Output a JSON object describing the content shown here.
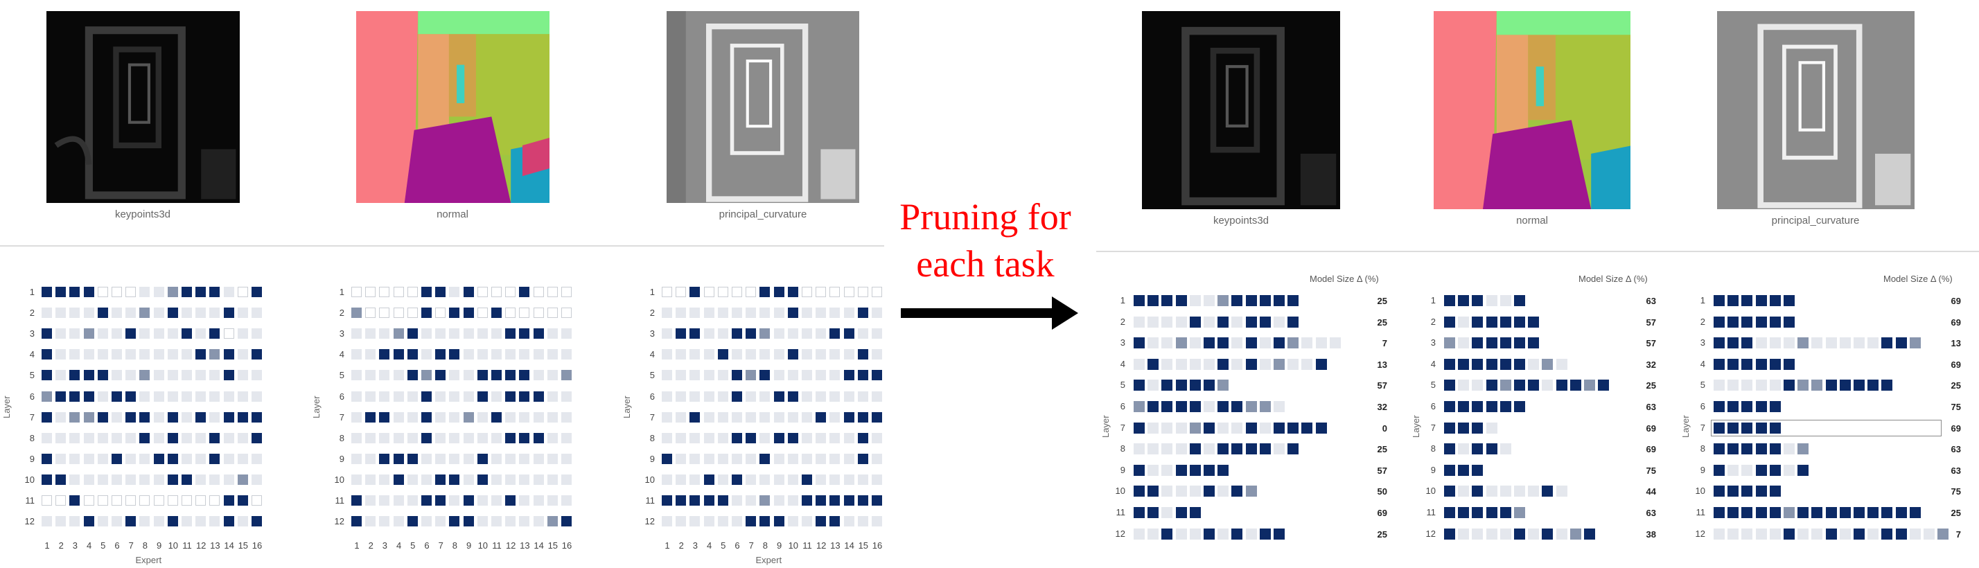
{
  "left": {
    "thumbnails": [
      {
        "caption": "keypoints3d"
      },
      {
        "caption": "normal"
      },
      {
        "caption": "principal_curvature"
      }
    ],
    "x_axis_title": "Expert",
    "y_axis_title": "Layer",
    "row_labels": [
      "1",
      "2",
      "3",
      "4",
      "5",
      "6",
      "7",
      "8",
      "9",
      "10",
      "11",
      "12"
    ],
    "col_labels": [
      "1",
      "2",
      "3",
      "4",
      "5",
      "6",
      "7",
      "8",
      "9",
      "10",
      "11",
      "12",
      "13",
      "14",
      "15",
      "16"
    ]
  },
  "callout": {
    "line1": "Pruning for",
    "line2": "each task",
    "color": "#ff0000"
  },
  "right": {
    "thumbnails": [
      {
        "caption": "keypoints3d"
      },
      {
        "caption": "normal"
      },
      {
        "caption": "principal_curvature"
      }
    ],
    "model_size_header": "Model Size Δ (%)",
    "y_axis_title": "Layer",
    "row_labels": [
      "1",
      "2",
      "3",
      "4",
      "5",
      "6",
      "7",
      "8",
      "9",
      "10",
      "11",
      "12"
    ]
  },
  "chart_data": [
    {
      "type": "heatmap",
      "panel": "left",
      "task": "keypoints3d",
      "xlabel": "Expert",
      "ylabel": "Layer",
      "legend_levels": "0=unused(white),1=light,2=medium,3=dark(most used)",
      "grid": [
        [
          3,
          3,
          3,
          3,
          0,
          0,
          0,
          1,
          1,
          2,
          3,
          3,
          3,
          1,
          0,
          3
        ],
        [
          1,
          1,
          1,
          1,
          3,
          1,
          1,
          2,
          1,
          3,
          1,
          1,
          1,
          3,
          1,
          1
        ],
        [
          3,
          1,
          1,
          2,
          1,
          1,
          3,
          1,
          1,
          1,
          3,
          1,
          3,
          0,
          1,
          1
        ],
        [
          3,
          1,
          1,
          1,
          1,
          1,
          1,
          1,
          1,
          1,
          1,
          3,
          2,
          3,
          1,
          3
        ],
        [
          3,
          1,
          3,
          3,
          3,
          1,
          1,
          2,
          1,
          1,
          1,
          1,
          1,
          3,
          1,
          1
        ],
        [
          2,
          3,
          3,
          3,
          1,
          3,
          3,
          1,
          1,
          1,
          1,
          1,
          1,
          1,
          1,
          1
        ],
        [
          3,
          1,
          2,
          2,
          3,
          1,
          3,
          3,
          1,
          3,
          1,
          3,
          1,
          3,
          3,
          3
        ],
        [
          1,
          1,
          1,
          1,
          1,
          1,
          1,
          3,
          1,
          3,
          1,
          1,
          3,
          1,
          1,
          3
        ],
        [
          3,
          1,
          1,
          1,
          1,
          3,
          1,
          1,
          3,
          3,
          1,
          1,
          3,
          1,
          1,
          1
        ],
        [
          3,
          3,
          1,
          1,
          1,
          1,
          1,
          1,
          1,
          3,
          3,
          1,
          1,
          1,
          2,
          1
        ],
        [
          0,
          0,
          3,
          0,
          0,
          0,
          0,
          0,
          0,
          0,
          0,
          0,
          0,
          3,
          3,
          0
        ],
        [
          1,
          1,
          1,
          3,
          1,
          1,
          3,
          1,
          1,
          3,
          1,
          1,
          1,
          3,
          1,
          3
        ]
      ]
    },
    {
      "type": "heatmap",
      "panel": "left",
      "task": "normal",
      "xlabel": "",
      "ylabel": "Layer",
      "grid": [
        [
          0,
          0,
          0,
          0,
          0,
          3,
          3,
          1,
          3,
          0,
          0,
          0,
          3,
          0,
          0,
          0
        ],
        [
          2,
          0,
          0,
          0,
          0,
          3,
          0,
          3,
          3,
          0,
          3,
          0,
          0,
          0,
          0,
          0
        ],
        [
          1,
          1,
          1,
          2,
          3,
          1,
          1,
          1,
          1,
          1,
          1,
          3,
          3,
          3,
          1,
          1
        ],
        [
          1,
          1,
          3,
          3,
          3,
          1,
          3,
          3,
          1,
          1,
          1,
          1,
          1,
          1,
          1,
          1
        ],
        [
          1,
          1,
          1,
          1,
          3,
          2,
          3,
          1,
          1,
          3,
          3,
          3,
          3,
          1,
          1,
          2
        ],
        [
          1,
          1,
          1,
          1,
          1,
          3,
          1,
          1,
          1,
          3,
          1,
          3,
          3,
          3,
          1,
          1
        ],
        [
          1,
          3,
          3,
          1,
          1,
          3,
          1,
          1,
          2,
          1,
          3,
          1,
          1,
          1,
          1,
          1
        ],
        [
          1,
          1,
          1,
          1,
          1,
          3,
          1,
          1,
          1,
          1,
          1,
          3,
          3,
          3,
          1,
          1
        ],
        [
          1,
          1,
          3,
          3,
          3,
          1,
          1,
          1,
          1,
          3,
          1,
          1,
          1,
          1,
          1,
          1
        ],
        [
          1,
          1,
          1,
          3,
          1,
          1,
          3,
          3,
          1,
          3,
          1,
          1,
          1,
          1,
          1,
          1
        ],
        [
          3,
          1,
          1,
          1,
          1,
          3,
          3,
          1,
          3,
          1,
          1,
          3,
          1,
          1,
          1,
          1
        ],
        [
          3,
          1,
          1,
          1,
          3,
          1,
          1,
          3,
          3,
          1,
          1,
          1,
          1,
          1,
          2,
          3
        ]
      ]
    },
    {
      "type": "heatmap",
      "panel": "left",
      "task": "principal_curvature",
      "xlabel": "Expert",
      "ylabel": "Layer",
      "grid": [
        [
          0,
          0,
          3,
          0,
          0,
          0,
          0,
          3,
          3,
          3,
          0,
          0,
          0,
          0,
          0,
          0
        ],
        [
          1,
          1,
          1,
          1,
          1,
          1,
          1,
          1,
          1,
          3,
          1,
          1,
          1,
          1,
          3,
          1
        ],
        [
          1,
          3,
          3,
          1,
          1,
          3,
          3,
          2,
          1,
          1,
          1,
          1,
          3,
          3,
          1,
          1
        ],
        [
          1,
          1,
          1,
          1,
          3,
          1,
          1,
          1,
          1,
          3,
          1,
          1,
          1,
          1,
          3,
          1
        ],
        [
          1,
          1,
          1,
          1,
          1,
          3,
          2,
          3,
          1,
          1,
          1,
          1,
          1,
          3,
          3,
          3
        ],
        [
          1,
          1,
          1,
          1,
          1,
          3,
          1,
          1,
          3,
          3,
          1,
          1,
          1,
          1,
          1,
          1
        ],
        [
          1,
          1,
          3,
          1,
          1,
          1,
          1,
          1,
          1,
          1,
          1,
          3,
          1,
          3,
          3,
          3
        ],
        [
          1,
          1,
          1,
          1,
          1,
          3,
          3,
          1,
          3,
          3,
          1,
          1,
          1,
          1,
          3,
          1
        ],
        [
          3,
          1,
          1,
          1,
          1,
          1,
          1,
          3,
          1,
          1,
          1,
          1,
          1,
          1,
          3,
          1
        ],
        [
          1,
          1,
          1,
          3,
          1,
          3,
          1,
          1,
          1,
          1,
          3,
          1,
          1,
          1,
          1,
          1
        ],
        [
          3,
          3,
          3,
          3,
          3,
          1,
          1,
          2,
          1,
          1,
          3,
          3,
          3,
          3,
          3,
          3
        ],
        [
          1,
          1,
          1,
          1,
          1,
          1,
          3,
          3,
          3,
          1,
          1,
          3,
          3,
          1,
          1,
          1
        ]
      ]
    },
    {
      "type": "heatmap",
      "panel": "right",
      "task": "keypoints3d (pruned)",
      "ylabel": "Layer",
      "model_size_delta_pct": [
        25,
        25,
        7,
        13,
        57,
        32,
        0,
        25,
        57,
        50,
        69,
        25
      ],
      "rows": [
        [
          3,
          3,
          3,
          3,
          1,
          1,
          2,
          3,
          3,
          3,
          3,
          3
        ],
        [
          1,
          1,
          1,
          1,
          3,
          1,
          3,
          1,
          3,
          3,
          1,
          3
        ],
        [
          3,
          1,
          1,
          2,
          1,
          3,
          3,
          1,
          3,
          1,
          3,
          2,
          1,
          1,
          1
        ],
        [
          1,
          3,
          1,
          1,
          1,
          1,
          3,
          1,
          3,
          1,
          2,
          1,
          1,
          3
        ],
        [
          3,
          1,
          3,
          3,
          3,
          3,
          2
        ],
        [
          2,
          3,
          3,
          3,
          3,
          1,
          3,
          3,
          2,
          2,
          1
        ],
        [
          3,
          1,
          1,
          1,
          2,
          3,
          1,
          1,
          3,
          1,
          3,
          3,
          3,
          3
        ],
        [
          1,
          1,
          1,
          1,
          3,
          1,
          3,
          3,
          3,
          3,
          1,
          3
        ],
        [
          3,
          1,
          1,
          3,
          3,
          3,
          3
        ],
        [
          3,
          3,
          1,
          1,
          1,
          3,
          1,
          3,
          2
        ],
        [
          3,
          3,
          1,
          3,
          3
        ],
        [
          1,
          1,
          3,
          1,
          1,
          3,
          1,
          3,
          1,
          3,
          3
        ]
      ]
    },
    {
      "type": "heatmap",
      "panel": "right",
      "task": "normal (pruned)",
      "ylabel": "Layer",
      "model_size_delta_pct": [
        63,
        57,
        57,
        32,
        25,
        63,
        69,
        69,
        75,
        44,
        63,
        38
      ],
      "rows": [
        [
          3,
          3,
          3,
          1,
          1,
          3
        ],
        [
          3,
          1,
          3,
          3,
          3,
          3,
          3
        ],
        [
          2,
          1,
          3,
          3,
          3,
          3,
          3
        ],
        [
          3,
          3,
          3,
          3,
          3,
          3,
          1,
          2,
          1
        ],
        [
          3,
          1,
          1,
          3,
          2,
          3,
          3,
          1,
          3,
          3,
          2,
          3
        ],
        [
          3,
          3,
          3,
          3,
          3,
          3
        ],
        [
          3,
          3,
          3,
          1
        ],
        [
          3,
          1,
          3,
          3,
          1
        ],
        [
          3,
          3,
          3
        ],
        [
          3,
          1,
          3,
          1,
          1,
          1,
          1,
          3,
          1
        ],
        [
          3,
          3,
          3,
          3,
          3,
          2
        ],
        [
          3,
          1,
          1,
          1,
          1,
          3,
          1,
          3,
          1,
          2,
          3
        ]
      ]
    },
    {
      "type": "heatmap",
      "panel": "right",
      "task": "principal_curvature (pruned)",
      "ylabel": "Layer",
      "model_size_delta_pct": [
        69,
        69,
        13,
        69,
        25,
        75,
        69,
        63,
        63,
        75,
        25,
        7
      ],
      "highlighted_row": 7,
      "rows": [
        [
          3,
          3,
          3,
          3,
          3,
          3
        ],
        [
          3,
          3,
          3,
          3,
          3,
          3
        ],
        [
          3,
          3,
          3,
          1,
          1,
          1,
          2,
          1,
          1,
          1,
          1,
          1,
          3,
          3,
          2
        ],
        [
          3,
          3,
          3,
          3,
          3,
          3
        ],
        [
          1,
          1,
          1,
          1,
          1,
          3,
          2,
          2,
          3,
          3,
          3,
          3,
          3
        ],
        [
          3,
          3,
          3,
          3,
          3
        ],
        [
          3,
          3,
          3,
          3,
          3
        ],
        [
          3,
          3,
          3,
          3,
          3,
          1,
          2
        ],
        [
          3,
          1,
          1,
          3,
          3,
          1,
          3
        ],
        [
          3,
          3,
          3,
          3,
          3
        ],
        [
          3,
          3,
          3,
          3,
          3,
          2,
          3,
          3,
          3,
          3,
          3,
          3,
          3,
          3,
          3
        ],
        [
          1,
          1,
          1,
          1,
          1,
          3,
          1,
          1,
          3,
          1,
          3,
          1,
          3,
          3,
          1,
          1,
          2
        ]
      ]
    }
  ]
}
